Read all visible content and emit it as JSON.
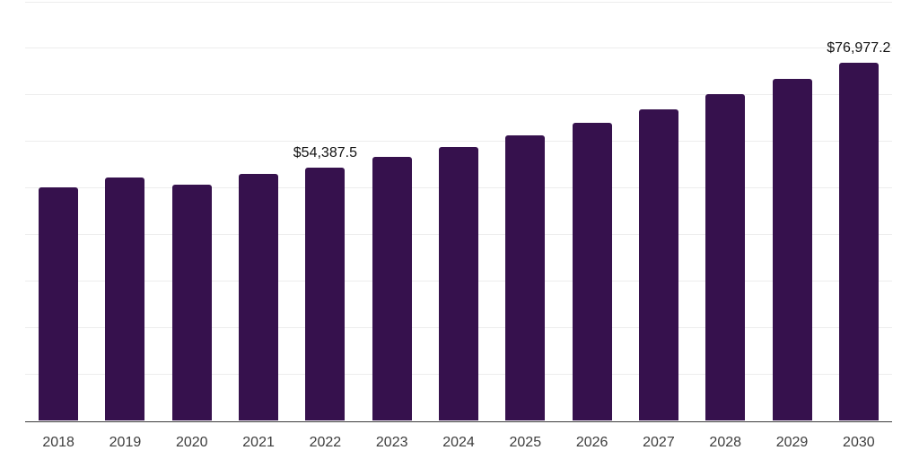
{
  "chart_data": {
    "type": "bar",
    "title": "",
    "xlabel": "",
    "ylabel": "",
    "categories": [
      "2018",
      "2019",
      "2020",
      "2021",
      "2022",
      "2023",
      "2024",
      "2025",
      "2026",
      "2027",
      "2028",
      "2029",
      "2030"
    ],
    "values": [
      50100,
      52200,
      50700,
      53000,
      54387.5,
      56600,
      58900,
      61300,
      64100,
      66900,
      70200,
      73500,
      76977.2
    ],
    "value_labels": {
      "2022": "$54,387.5",
      "2030": "$76,977.2"
    },
    "ylim": [
      0,
      90000
    ],
    "grid_step": 10000,
    "grid": "horizontal-only",
    "legend_position": "none",
    "colors": {
      "bar": "#36114d",
      "gridline": "#ededed",
      "axis_line": "#3b3b3b",
      "tick_label": "#3d3d3d",
      "value_label": "#141414",
      "background": "#ffffff"
    }
  }
}
